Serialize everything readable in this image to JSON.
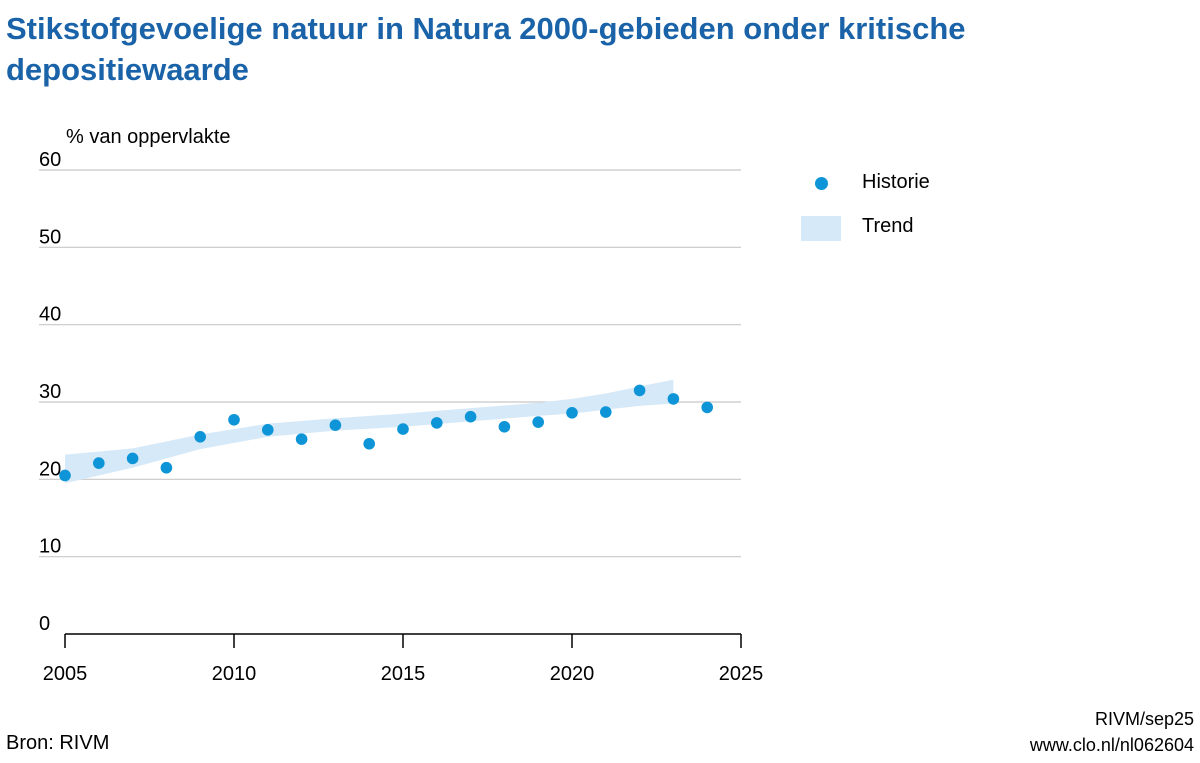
{
  "title": "Stikstofgevoelige natuur in Natura 2000-gebieden onder kritische depositiewaarde",
  "source": "Bron: RIVM",
  "credit": [
    "RIVM/sep25",
    "www.clo.nl/nl062604"
  ],
  "colors": {
    "title": "#1a63a8",
    "dots": "#0e95d7",
    "trend_band": "#d6e9f8",
    "grid": "#c8c8c8"
  },
  "chart_data": {
    "type": "scatter",
    "ylabel": "% van oppervlakte",
    "xlim": [
      2005,
      2025
    ],
    "ylim": [
      0,
      60
    ],
    "xticks": [
      2005,
      2010,
      2015,
      2020,
      2025
    ],
    "yticks": [
      0,
      10,
      20,
      30,
      40,
      50,
      60
    ],
    "grid": true,
    "legend_position": "right",
    "series": [
      {
        "name": "Historie",
        "type": "scatter",
        "x": [
          2005,
          2006,
          2007,
          2008,
          2009,
          2010,
          2011,
          2012,
          2013,
          2014,
          2015,
          2016,
          2017,
          2018,
          2019,
          2020,
          2021,
          2022,
          2023,
          2024
        ],
        "y": [
          20.5,
          22.1,
          22.7,
          21.5,
          25.5,
          27.7,
          26.4,
          25.2,
          27.0,
          24.6,
          26.5,
          27.3,
          28.1,
          26.8,
          27.4,
          28.6,
          28.7,
          31.5,
          30.4,
          29.3
        ]
      },
      {
        "name": "Trend",
        "type": "band",
        "x": [
          2005,
          2007,
          2009,
          2011,
          2013,
          2015,
          2017,
          2019,
          2020,
          2021,
          2022,
          2023
        ],
        "lower": [
          19.5,
          21.5,
          23.9,
          25.5,
          26.3,
          26.8,
          27.5,
          28.2,
          28.5,
          29.0,
          29.5,
          29.8
        ],
        "upper": [
          23.2,
          24.0,
          25.8,
          27.2,
          27.9,
          28.5,
          29.2,
          29.9,
          30.4,
          31.1,
          32.0,
          32.9
        ]
      }
    ]
  }
}
